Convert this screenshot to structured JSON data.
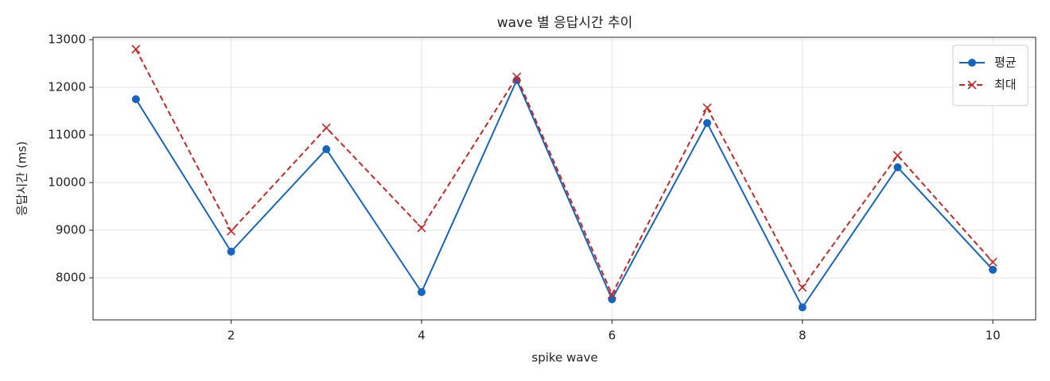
{
  "chart_data": {
    "type": "line",
    "title": "wave 별 응답시간 추이",
    "x_label": "spike wave",
    "y_label": "응답시간 (ms)",
    "x": [
      1,
      2,
      3,
      4,
      5,
      6,
      7,
      8,
      9,
      10
    ],
    "series": [
      {
        "name": "평균",
        "color": "#1565c0",
        "marker": "circle",
        "dash": "solid",
        "values": [
          11750,
          8550,
          10700,
          7700,
          12150,
          7550,
          11250,
          7380,
          10320,
          8170
        ]
      },
      {
        "name": "최대",
        "color": "#c62828",
        "marker": "x",
        "dash": "dashed",
        "values": [
          12800,
          8980,
          11150,
          9050,
          12220,
          7650,
          11570,
          7800,
          10570,
          8330
        ]
      }
    ],
    "xlim": [
      0.55,
      10.45
    ],
    "ylim": [
      7117,
      13050
    ],
    "xticks": [
      2,
      4,
      6,
      8,
      10
    ],
    "yticks": [
      8000,
      9000,
      10000,
      11000,
      12000,
      13000
    ],
    "grid": true,
    "legend": "upper right"
  }
}
